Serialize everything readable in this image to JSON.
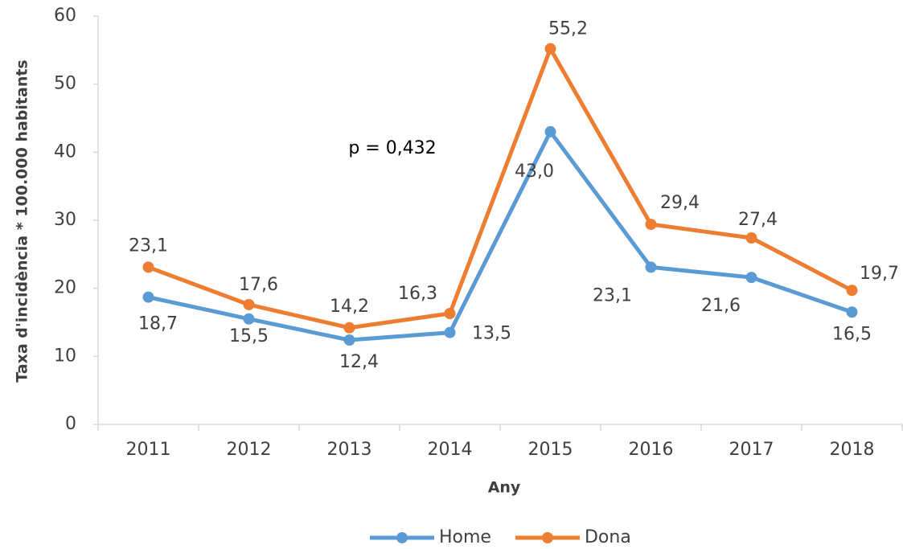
{
  "chart_data": {
    "type": "line",
    "xlabel": "Any",
    "ylabel": "Taxa d'incidència * 100.000 habitants",
    "annotation": "p = 0,432",
    "categories": [
      "2011",
      "2012",
      "2013",
      "2014",
      "2015",
      "2016",
      "2017",
      "2018"
    ],
    "series": [
      {
        "name": "Home",
        "color": "#5b9bd5",
        "values": [
          18.7,
          15.5,
          12.4,
          13.5,
          43.0,
          23.1,
          21.6,
          16.5
        ],
        "value_labels": [
          "18,7",
          "15,5",
          "12,4",
          "13,5",
          "43,0",
          "23,1",
          "21,6",
          "16,5"
        ]
      },
      {
        "name": "Dona",
        "color": "#ed7d31",
        "values": [
          23.1,
          17.6,
          14.2,
          16.3,
          55.2,
          29.4,
          27.4,
          19.7
        ],
        "value_labels": [
          "23,1",
          "17,6",
          "14,2",
          "16,3",
          "55,2",
          "29,4",
          "27,4",
          "19,7"
        ]
      }
    ],
    "ylim": [
      0,
      60
    ],
    "yticks": [
      0,
      10,
      20,
      30,
      40,
      50,
      60
    ],
    "grid": false,
    "legend": "bottom"
  }
}
